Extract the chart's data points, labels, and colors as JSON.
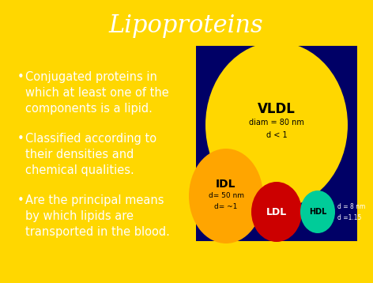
{
  "title": "Lipoproteins",
  "title_color": "white",
  "title_fontsize": 22,
  "bg_color": "#FFD700",
  "bullet_color": "white",
  "bullet_fontsize": 10.5,
  "bullets": [
    "Conjugated proteins in\nwhich at least one of the\ncomponents is a lipid.",
    "Classified according to\ntheir densities and\nchemical qualities.",
    "Are the principal means\nby which lipids are\ntransported in the blood."
  ],
  "diagram_bg": "#000066",
  "vldl_color": "#FFD700",
  "vldl_label": "VLDL",
  "vldl_sub1": "diam = 80 nm",
  "vldl_sub2": "d < 1",
  "idl_color": "#FFA500",
  "idl_label": "IDL",
  "idl_sub1": "d= 50 nm",
  "idl_sub2": "d= ~1",
  "ldl_color": "#CC0000",
  "ldl_label": "LDL",
  "hdl_color": "#00CC99",
  "hdl_label": "HDL",
  "hdl_sub1": "d = 8 nm",
  "hdl_sub2": "d =1.15"
}
